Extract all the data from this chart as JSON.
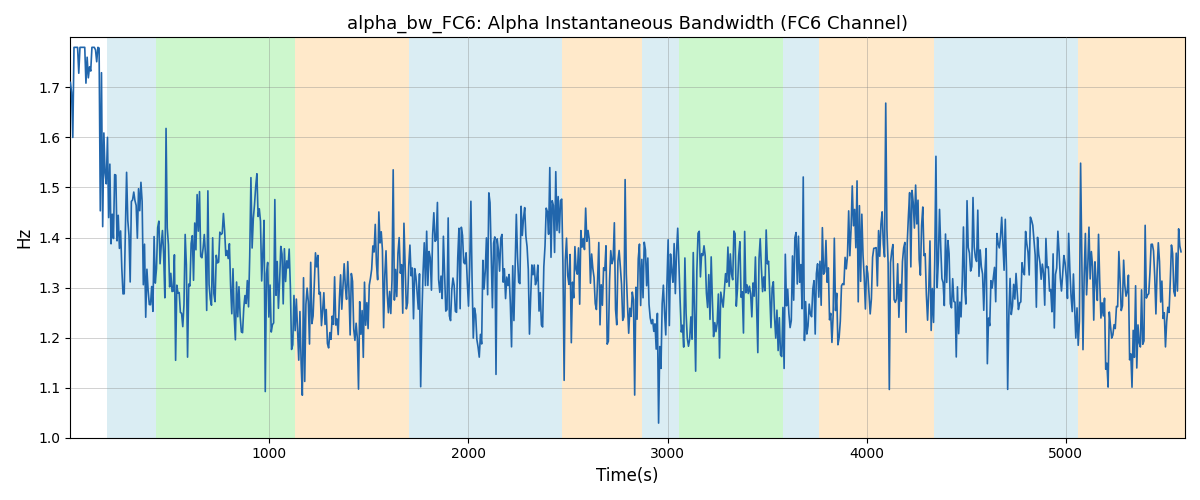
{
  "title": "alpha_bw_FC6: Alpha Instantaneous Bandwidth (FC6 Channel)",
  "xlabel": "Time(s)",
  "ylabel": "Hz",
  "xlim": [
    0,
    5600
  ],
  "ylim": [
    1.0,
    1.8
  ],
  "yticks": [
    1.0,
    1.1,
    1.2,
    1.3,
    1.4,
    1.5,
    1.6,
    1.7
  ],
  "xticks": [
    1000,
    2000,
    3000,
    4000,
    5000
  ],
  "line_color": "#2166ac",
  "line_width": 1.2,
  "background_color": "#ffffff",
  "bands": [
    {
      "xmin": 185,
      "xmax": 430,
      "color": "#add8e6",
      "alpha": 0.45
    },
    {
      "xmin": 430,
      "xmax": 1130,
      "color": "#90ee90",
      "alpha": 0.45
    },
    {
      "xmin": 1130,
      "xmax": 1700,
      "color": "#ffd8a0",
      "alpha": 0.55
    },
    {
      "xmin": 1700,
      "xmax": 2470,
      "color": "#add8e6",
      "alpha": 0.45
    },
    {
      "xmin": 2470,
      "xmax": 2870,
      "color": "#ffd8a0",
      "alpha": 0.55
    },
    {
      "xmin": 2870,
      "xmax": 3060,
      "color": "#add8e6",
      "alpha": 0.45
    },
    {
      "xmin": 3060,
      "xmax": 3580,
      "color": "#90ee90",
      "alpha": 0.45
    },
    {
      "xmin": 3580,
      "xmax": 3760,
      "color": "#add8e6",
      "alpha": 0.45
    },
    {
      "xmin": 3760,
      "xmax": 4340,
      "color": "#ffd8a0",
      "alpha": 0.55
    },
    {
      "xmin": 4340,
      "xmax": 5060,
      "color": "#add8e6",
      "alpha": 0.45
    },
    {
      "xmin": 5060,
      "xmax": 5600,
      "color": "#ffd8a0",
      "alpha": 0.55
    }
  ],
  "n_points": 930,
  "x_start": 0,
  "x_end": 5580,
  "seed": 7
}
